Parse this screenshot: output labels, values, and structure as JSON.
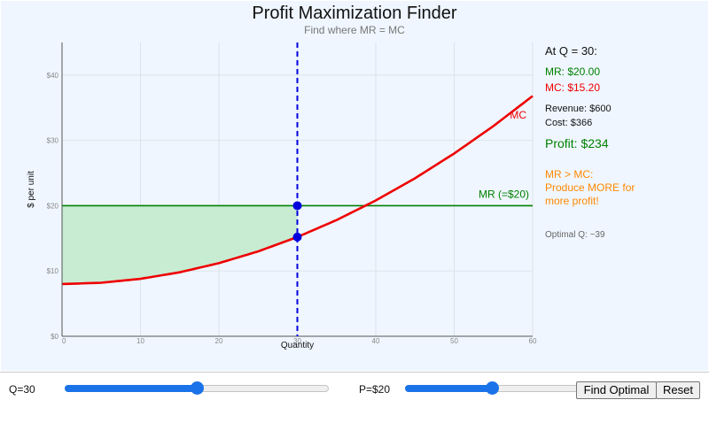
{
  "header": {
    "title": "Profit Maximization Finder",
    "subtitle": "Find where MR = MC"
  },
  "info": {
    "quantity_heading": "At Q = 30:",
    "mr": "MR: $20.00",
    "mc": "MC: $15.20",
    "revenue": "Revenue: $600",
    "cost": "Cost: $366",
    "profit": "Profit: $234",
    "advice_line1": "MR > MC:",
    "advice_line2": "Produce MORE for",
    "advice_line3": "more profit!",
    "optimal": "Optimal Q: ~39"
  },
  "controls": {
    "q_label": "Q=30",
    "q_value": 30,
    "q_min": 0,
    "q_max": 60,
    "p_label": "P=$20",
    "p_value": 20,
    "p_min": 0,
    "p_max": 40,
    "find_optimal_label": "Find Optimal",
    "reset_label": "Reset"
  },
  "colors": {
    "mr": "#008000",
    "mc": "#ee0000",
    "marker": "#0000dd",
    "profit_area": "#c8ecd2",
    "advice": "#ff8800",
    "slider": "#1a73e8"
  },
  "chart_data": {
    "type": "line",
    "xlabel": "Quantity",
    "ylabel": "$ per unit",
    "xlim": [
      0,
      60
    ],
    "ylim": [
      0,
      45
    ],
    "x_ticks": [
      0,
      10,
      20,
      30,
      40,
      50,
      60
    ],
    "y_ticks": [
      0,
      10,
      20,
      30,
      40
    ],
    "y_tick_labels": [
      "$0",
      "$10",
      "$20",
      "$30",
      "$40"
    ],
    "grid": true,
    "series": [
      {
        "name": "MC",
        "color": "#ee0000",
        "x": [
          0,
          5,
          10,
          15,
          20,
          25,
          30,
          35,
          40,
          45,
          50,
          55,
          60
        ],
        "y": [
          8,
          8.2,
          8.8,
          9.8,
          11.2,
          13.0,
          15.2,
          17.8,
          20.8,
          24.2,
          28.0,
          32.2,
          36.8
        ]
      },
      {
        "name": "MR (=$20)",
        "color": "#008000",
        "x": [
          0,
          60
        ],
        "y": [
          20,
          20
        ]
      }
    ],
    "selected_quantity": 30,
    "points": [
      {
        "x": 30,
        "y": 20
      },
      {
        "x": 30,
        "y": 15.2
      }
    ]
  }
}
